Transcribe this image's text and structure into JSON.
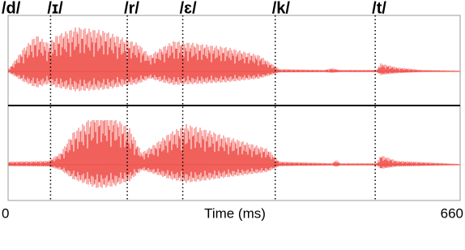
{
  "chart_data": {
    "type": "waveform",
    "x_label": "Time (ms)",
    "xlim": [
      0,
      660
    ],
    "xticks": [
      0,
      660
    ],
    "labels": [
      "/d/",
      "/ɪ/",
      "/r/",
      "/ɛ/",
      "/k/",
      "/t/"
    ],
    "boundaries": [
      null,
      62,
      174,
      255,
      390,
      536
    ],
    "color": "#f0504a"
  }
}
